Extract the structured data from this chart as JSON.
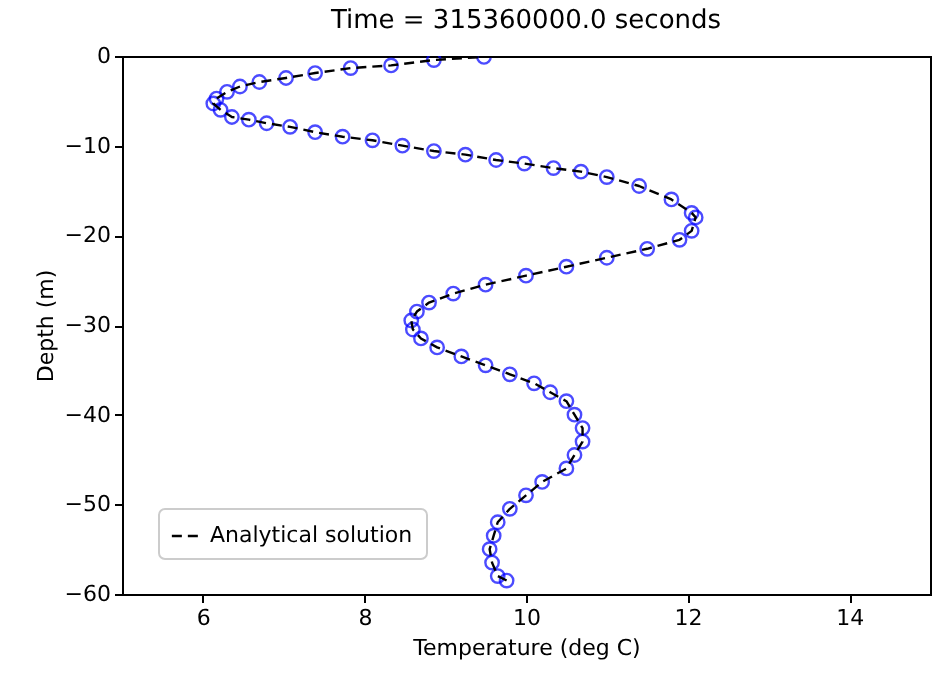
{
  "chart_data": {
    "type": "scatter",
    "title": "Time = 315360000.0 seconds",
    "xlabel": "Temperature (deg C)",
    "ylabel": "Depth (m)",
    "xlim": [
      5,
      15
    ],
    "ylim": [
      -60,
      0
    ],
    "xticks": [
      6,
      8,
      10,
      12,
      14
    ],
    "yticks": [
      -60,
      -50,
      -40,
      -30,
      -20,
      -10,
      0
    ],
    "grid": false,
    "legend": "bottom left",
    "series": [
      {
        "marker": "circle",
        "color": "#0000ff",
        "x": [
          9.48,
          8.86,
          8.33,
          7.83,
          7.39,
          7.03,
          6.7,
          6.46,
          6.3,
          6.17,
          6.13,
          6.22,
          6.36,
          6.57,
          6.79,
          7.08,
          7.39,
          7.73,
          8.1,
          8.47,
          8.86,
          9.25,
          9.63,
          9.98,
          10.34,
          10.68,
          11.0,
          11.4,
          11.8,
          12.05,
          12.1,
          12.05,
          11.9,
          11.5,
          11.0,
          10.5,
          10.0,
          9.5,
          9.1,
          8.8,
          8.65,
          8.58,
          8.6,
          8.7,
          8.9,
          9.2,
          9.5,
          9.8,
          10.1,
          10.3,
          10.5,
          10.6,
          10.7,
          10.7,
          10.6,
          10.5,
          10.2,
          10.0,
          9.8,
          9.65,
          9.6,
          9.55,
          9.58,
          9.65,
          9.76
        ],
        "values": [
          -0.1,
          -0.45,
          -1.05,
          -1.35,
          -1.9,
          -2.45,
          -2.9,
          -3.4,
          -4.0,
          -4.75,
          -5.3,
          -6.0,
          -6.8,
          -7.1,
          -7.5,
          -7.9,
          -8.5,
          -9.0,
          -9.4,
          -10.0,
          -10.6,
          -11.0,
          -11.6,
          -12.0,
          -12.5,
          -12.9,
          -13.5,
          -14.5,
          -16.0,
          -17.5,
          -18.0,
          -19.5,
          -20.5,
          -21.5,
          -22.5,
          -23.5,
          -24.5,
          -25.5,
          -26.5,
          -27.5,
          -28.5,
          -29.5,
          -30.5,
          -31.5,
          -32.5,
          -33.5,
          -34.5,
          -35.5,
          -36.5,
          -37.5,
          -38.5,
          -40.0,
          -41.5,
          -43.0,
          -44.5,
          -46.0,
          -47.5,
          -49.0,
          -50.5,
          -52.0,
          -53.5,
          -55.0,
          -56.5,
          -58.0,
          -58.5
        ]
      },
      {
        "type": "line",
        "name": "Analytical solution",
        "color": "#000000",
        "line_style": "dashed",
        "x": [
          9.8,
          9.48,
          8.86,
          8.33,
          7.83,
          7.39,
          7.03,
          6.7,
          6.46,
          6.3,
          6.17,
          6.13,
          6.22,
          6.36,
          6.57,
          6.79,
          7.08,
          7.39,
          7.73,
          8.1,
          8.47,
          8.86,
          9.25,
          9.63,
          9.98,
          10.34,
          10.68,
          11.0,
          11.4,
          11.8,
          12.05,
          12.1,
          12.05,
          11.9,
          11.5,
          11.0,
          10.5,
          10.0,
          9.5,
          9.1,
          8.8,
          8.65,
          8.58,
          8.6,
          8.7,
          8.9,
          9.2,
          9.5,
          9.8,
          10.1,
          10.3,
          10.5,
          10.6,
          10.7,
          10.7,
          10.6,
          10.5,
          10.2,
          10.0,
          9.8,
          9.65,
          9.6,
          9.55,
          9.58,
          9.65,
          9.76
        ],
        "values": [
          0,
          -0.1,
          -0.45,
          -1.05,
          -1.35,
          -1.9,
          -2.45,
          -2.9,
          -3.4,
          -4.0,
          -4.75,
          -5.3,
          -6.0,
          -6.8,
          -7.1,
          -7.5,
          -7.9,
          -8.5,
          -9.0,
          -9.4,
          -10.0,
          -10.6,
          -11.0,
          -11.6,
          -12.0,
          -12.5,
          -12.9,
          -13.5,
          -14.5,
          -16.0,
          -17.5,
          -18.0,
          -19.5,
          -20.5,
          -21.5,
          -22.5,
          -23.5,
          -24.5,
          -25.5,
          -26.5,
          -27.5,
          -28.5,
          -29.5,
          -30.5,
          -31.5,
          -32.5,
          -33.5,
          -34.5,
          -35.5,
          -36.5,
          -37.5,
          -38.5,
          -40.0,
          -41.5,
          -43.0,
          -44.5,
          -46.0,
          -47.5,
          -49.0,
          -50.5,
          -52.0,
          -53.5,
          -55.0,
          -56.5,
          -58.0,
          -58.5
        ]
      }
    ]
  }
}
